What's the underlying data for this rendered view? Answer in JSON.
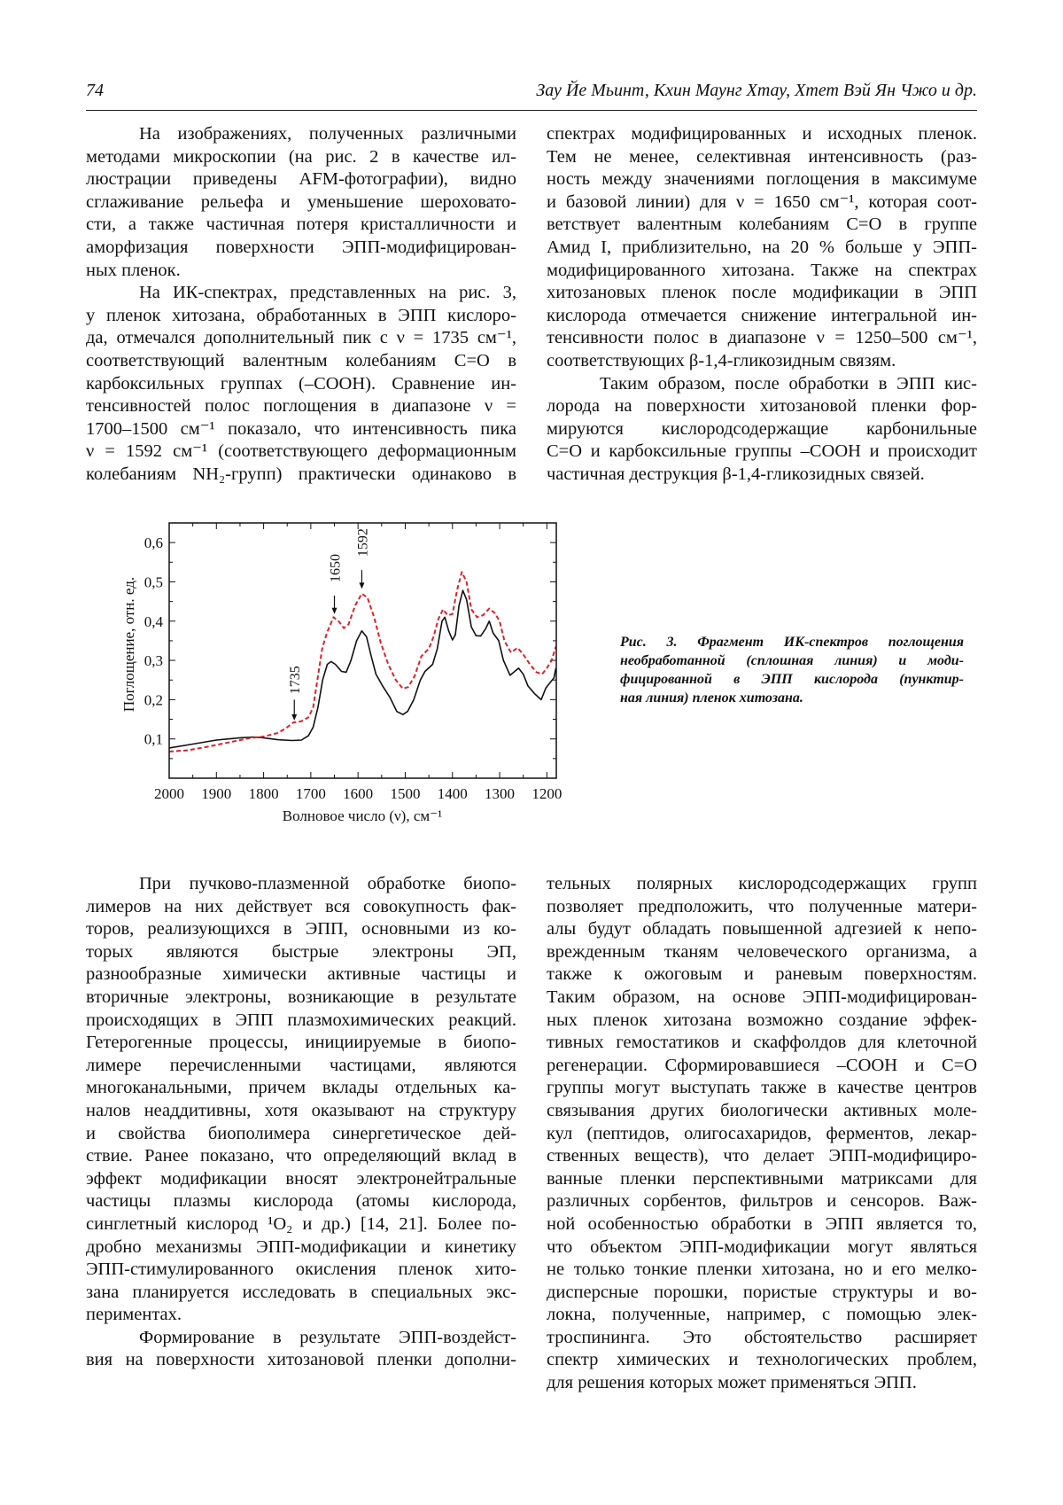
{
  "header": {
    "page_number": "74",
    "authors": "Зау Йе Мьинт, Кхин Маунг Хтау, Хтет Вэй Ян Чжо и др."
  },
  "columns": {
    "top_left": [
      {
        "indent": true,
        "ends": true,
        "lines": [
          "На изображениях, полученных различными",
          "методами микроскопии (на рис. 2 в качестве ил-",
          "люстрации приведены AFM-фотографии), видно",
          "сглаживание рельефа и уменьшение шероховато-",
          "сти, а также частичная потеря кристалличности и",
          "аморфизация поверхности ЭПП-модифицирован-",
          "ных пленок."
        ]
      },
      {
        "indent": true,
        "ends": false,
        "lines": [
          "На ИК-спектрах, представленных на рис. 3,",
          "у пленок хитозана, обработанных в ЭПП кислоро-",
          "да, отмечался дополнительный пик с ν = 1735 см⁻¹,",
          "соответствующий валентным колебаниям С=О в",
          "карбоксильных группах (–СООН). Сравнение ин-",
          "тенсивностей полос поглощения в диапазоне ν =",
          "1700–1500 см⁻¹ показало, что интенсивность пика",
          "ν = 1592 см⁻¹ (соответствующего деформационным",
          "колебаниям NH₂-групп) практически одинаково в"
        ]
      }
    ],
    "top_right": [
      {
        "indent": false,
        "ends": true,
        "lines": [
          "спектрах модифицированных и исходных пленок.",
          "Тем не менее, селективная интенсивность (раз-",
          "ность между значениями поглощения в максимуме",
          "и базовой линии) для ν = 1650 см⁻¹, которая соот-",
          "ветствует валентным колебаниям С=О в группе",
          "Амид I, приблизительно, на 20 % больше у ЭПП-",
          "модифицированного хитозана. Также на спектрах",
          "хитозановых пленок после модификации в ЭПП",
          "кислорода отмечается снижение интегральной ин-",
          "тенсивности полос в диапазоне ν = 1250–500 см⁻¹,",
          "соответствующих β-1,4-гликозидным связям."
        ]
      },
      {
        "indent": true,
        "ends": true,
        "lines": [
          "Таким образом, после обработки в ЭПП кис-",
          "лорода на поверхности хитозановой пленки фор-",
          "мируются кислородсодержащие карбонильные",
          "С=О и карбоксильные группы –СООН и происходит",
          "частичная деструкция β-1,4-гликозидных связей."
        ]
      }
    ],
    "bottom_left": [
      {
        "indent": true,
        "ends": true,
        "lines": [
          "При пучково-плазменной обработке биопо-",
          "лимеров на них действует вся совокупность фак-",
          "торов, реализующихся в ЭПП, основными из ко-",
          "торых являются быстрые электроны ЭП,",
          "разнообразные химически активные частицы и",
          "вторичные электроны, возникающие в результате",
          "происходящих в ЭПП плазмохимических реакций.",
          "Гетерогенные процессы, инициируемые в биопо-",
          "лимере перечисленными частицами, являются",
          "многоканальными, причем вклады отдельных ка-",
          "налов неаддитивны, хотя оказывают на структуру",
          "и свойства биополимера синергетическое дей-",
          "ствие. Ранее показано, что определяющий вклад в",
          "эффект модификации вносят электронейтральные",
          "частицы плазмы кислорода (атомы кислорода,",
          "синглетный кислород ¹O₂ и др.) [14, 21]. Более по-",
          "дробно механизмы ЭПП-модификации и кинетику",
          "ЭПП-стимулированного окисления пленок хито-",
          "зана планируется исследовать в специальных экс-",
          "периментах."
        ]
      },
      {
        "indent": true,
        "ends": false,
        "lines": [
          "Формирование в результате ЭПП-воздейст-",
          "вия на поверхности хитозановой пленки дополни-"
        ]
      }
    ],
    "bottom_right": [
      {
        "indent": false,
        "ends": true,
        "lines": [
          "тельных полярных кислородсодержащих групп",
          "позволяет предположить, что полученные матери-",
          "алы будут обладать повышенной адгезией к непо-",
          "врежденным тканям человеческого организма, а",
          "также к ожоговым и раневым поверхностям.",
          "Таким образом, на основе ЭПП-модифицирован-",
          "ных пленок хитозана возможно создание эффек-",
          "тивных гемостатиков и скаффолдов для клеточной",
          "регенерации. Сформировавшиеся –СООН и С=О",
          "группы могут выступать также в качестве центров",
          "связывания других биологически активных моле-",
          "кул (пептидов, олигосахаридов, ферментов, лекар-",
          "ственных веществ), что делает ЭПП-модифициро-",
          "ванные пленки перспективными матриксами для",
          "различных сорбентов, фильтров и сенсоров. Важ-",
          "ной особенностью обработки в ЭПП является то,",
          "что объектом ЭПП-модификации могут являться",
          "не только тонкие пленки хитозана, но и его мелко-",
          "дисперсные порошки, пористые структуры и во-",
          "локна, полученные, например, с помощью элек-",
          "троспининга. Это обстоятельство расширяет",
          "спектр химических и технологических проблем,",
          "для решения которых может применяться ЭПП."
        ]
      }
    ]
  },
  "figure": {
    "caption_lines": [
      "Рис. 3. Фрагмент ИК-спектров поглощения",
      "необработанной (сплошная линия) и моди-",
      "фицированной в ЭПП кислорода (пунктир-",
      "ная линия) пленок хитозана."
    ]
  },
  "chart_data": {
    "type": "line",
    "xlabel": "Волновое число (ν), см⁻¹",
    "ylabel": "Поглощение, отн. ед.",
    "xlim": [
      2000,
      1180
    ],
    "ylim": [
      0,
      0.65
    ],
    "x_reversed": true,
    "x_ticks": [
      "2000",
      "1900",
      "1800",
      "1700",
      "1600",
      "1500",
      "1400",
      "1300",
      "1200"
    ],
    "x_tick_values": [
      2000,
      1900,
      1800,
      1700,
      1600,
      1500,
      1400,
      1300,
      1200
    ],
    "y_ticks": [
      "0,1",
      "0,2",
      "0,3",
      "0,4",
      "0,5",
      "0,6"
    ],
    "y_tick_values": [
      0.1,
      0.2,
      0.3,
      0.4,
      0.5,
      0.6
    ],
    "grid": false,
    "series": [
      {
        "style": "solid",
        "color": "#111111",
        "points": [
          [
            2000,
            0.077
          ],
          [
            1950,
            0.087
          ],
          [
            1900,
            0.097
          ],
          [
            1850,
            0.103
          ],
          [
            1820,
            0.105
          ],
          [
            1800,
            0.103
          ],
          [
            1770,
            0.098
          ],
          [
            1740,
            0.096
          ],
          [
            1720,
            0.097
          ],
          [
            1705,
            0.108
          ],
          [
            1695,
            0.13
          ],
          [
            1685,
            0.18
          ],
          [
            1675,
            0.25
          ],
          [
            1665,
            0.29
          ],
          [
            1657,
            0.297
          ],
          [
            1648,
            0.29
          ],
          [
            1635,
            0.272
          ],
          [
            1625,
            0.27
          ],
          [
            1615,
            0.3
          ],
          [
            1603,
            0.35
          ],
          [
            1592,
            0.375
          ],
          [
            1582,
            0.36
          ],
          [
            1572,
            0.31
          ],
          [
            1562,
            0.265
          ],
          [
            1548,
            0.235
          ],
          [
            1532,
            0.205
          ],
          [
            1518,
            0.17
          ],
          [
            1505,
            0.162
          ],
          [
            1495,
            0.17
          ],
          [
            1482,
            0.2
          ],
          [
            1468,
            0.25
          ],
          [
            1458,
            0.272
          ],
          [
            1442,
            0.29
          ],
          [
            1432,
            0.33
          ],
          [
            1422,
            0.4
          ],
          [
            1416,
            0.41
          ],
          [
            1408,
            0.375
          ],
          [
            1400,
            0.352
          ],
          [
            1394,
            0.365
          ],
          [
            1386,
            0.44
          ],
          [
            1378,
            0.478
          ],
          [
            1370,
            0.455
          ],
          [
            1360,
            0.385
          ],
          [
            1350,
            0.363
          ],
          [
            1340,
            0.362
          ],
          [
            1330,
            0.38
          ],
          [
            1322,
            0.4
          ],
          [
            1314,
            0.37
          ],
          [
            1302,
            0.35
          ],
          [
            1292,
            0.3
          ],
          [
            1278,
            0.262
          ],
          [
            1270,
            0.27
          ],
          [
            1260,
            0.28
          ],
          [
            1250,
            0.265
          ],
          [
            1240,
            0.235
          ],
          [
            1226,
            0.215
          ],
          [
            1212,
            0.2
          ],
          [
            1202,
            0.23
          ],
          [
            1192,
            0.245
          ],
          [
            1185,
            0.255
          ],
          [
            1181,
            0.28
          ]
        ]
      },
      {
        "style": "dashed",
        "color": "#e0202a",
        "points": [
          [
            2000,
            0.068
          ],
          [
            1960,
            0.071
          ],
          [
            1920,
            0.08
          ],
          [
            1870,
            0.092
          ],
          [
            1830,
            0.102
          ],
          [
            1800,
            0.106
          ],
          [
            1770,
            0.115
          ],
          [
            1752,
            0.128
          ],
          [
            1737,
            0.142
          ],
          [
            1720,
            0.145
          ],
          [
            1705,
            0.155
          ],
          [
            1695,
            0.18
          ],
          [
            1686,
            0.25
          ],
          [
            1676,
            0.33
          ],
          [
            1666,
            0.37
          ],
          [
            1652,
            0.41
          ],
          [
            1640,
            0.398
          ],
          [
            1630,
            0.382
          ],
          [
            1620,
            0.392
          ],
          [
            1606,
            0.44
          ],
          [
            1592,
            0.47
          ],
          [
            1580,
            0.46
          ],
          [
            1566,
            0.41
          ],
          [
            1552,
            0.345
          ],
          [
            1536,
            0.29
          ],
          [
            1520,
            0.25
          ],
          [
            1505,
            0.228
          ],
          [
            1494,
            0.232
          ],
          [
            1480,
            0.26
          ],
          [
            1466,
            0.31
          ],
          [
            1450,
            0.33
          ],
          [
            1440,
            0.36
          ],
          [
            1430,
            0.405
          ],
          [
            1420,
            0.43
          ],
          [
            1410,
            0.415
          ],
          [
            1400,
            0.418
          ],
          [
            1390,
            0.48
          ],
          [
            1380,
            0.525
          ],
          [
            1370,
            0.5
          ],
          [
            1360,
            0.43
          ],
          [
            1348,
            0.41
          ],
          [
            1335,
            0.415
          ],
          [
            1322,
            0.432
          ],
          [
            1310,
            0.42
          ],
          [
            1300,
            0.4
          ],
          [
            1290,
            0.35
          ],
          [
            1276,
            0.32
          ],
          [
            1262,
            0.332
          ],
          [
            1250,
            0.315
          ],
          [
            1236,
            0.29
          ],
          [
            1222,
            0.27
          ],
          [
            1210,
            0.265
          ],
          [
            1200,
            0.28
          ],
          [
            1190,
            0.3
          ],
          [
            1181,
            0.335
          ]
        ]
      }
    ],
    "annotations": [
      {
        "label": "1735",
        "x": 1735
      },
      {
        "label": "1650",
        "x": 1650
      },
      {
        "label": "1592",
        "x": 1592
      }
    ]
  }
}
